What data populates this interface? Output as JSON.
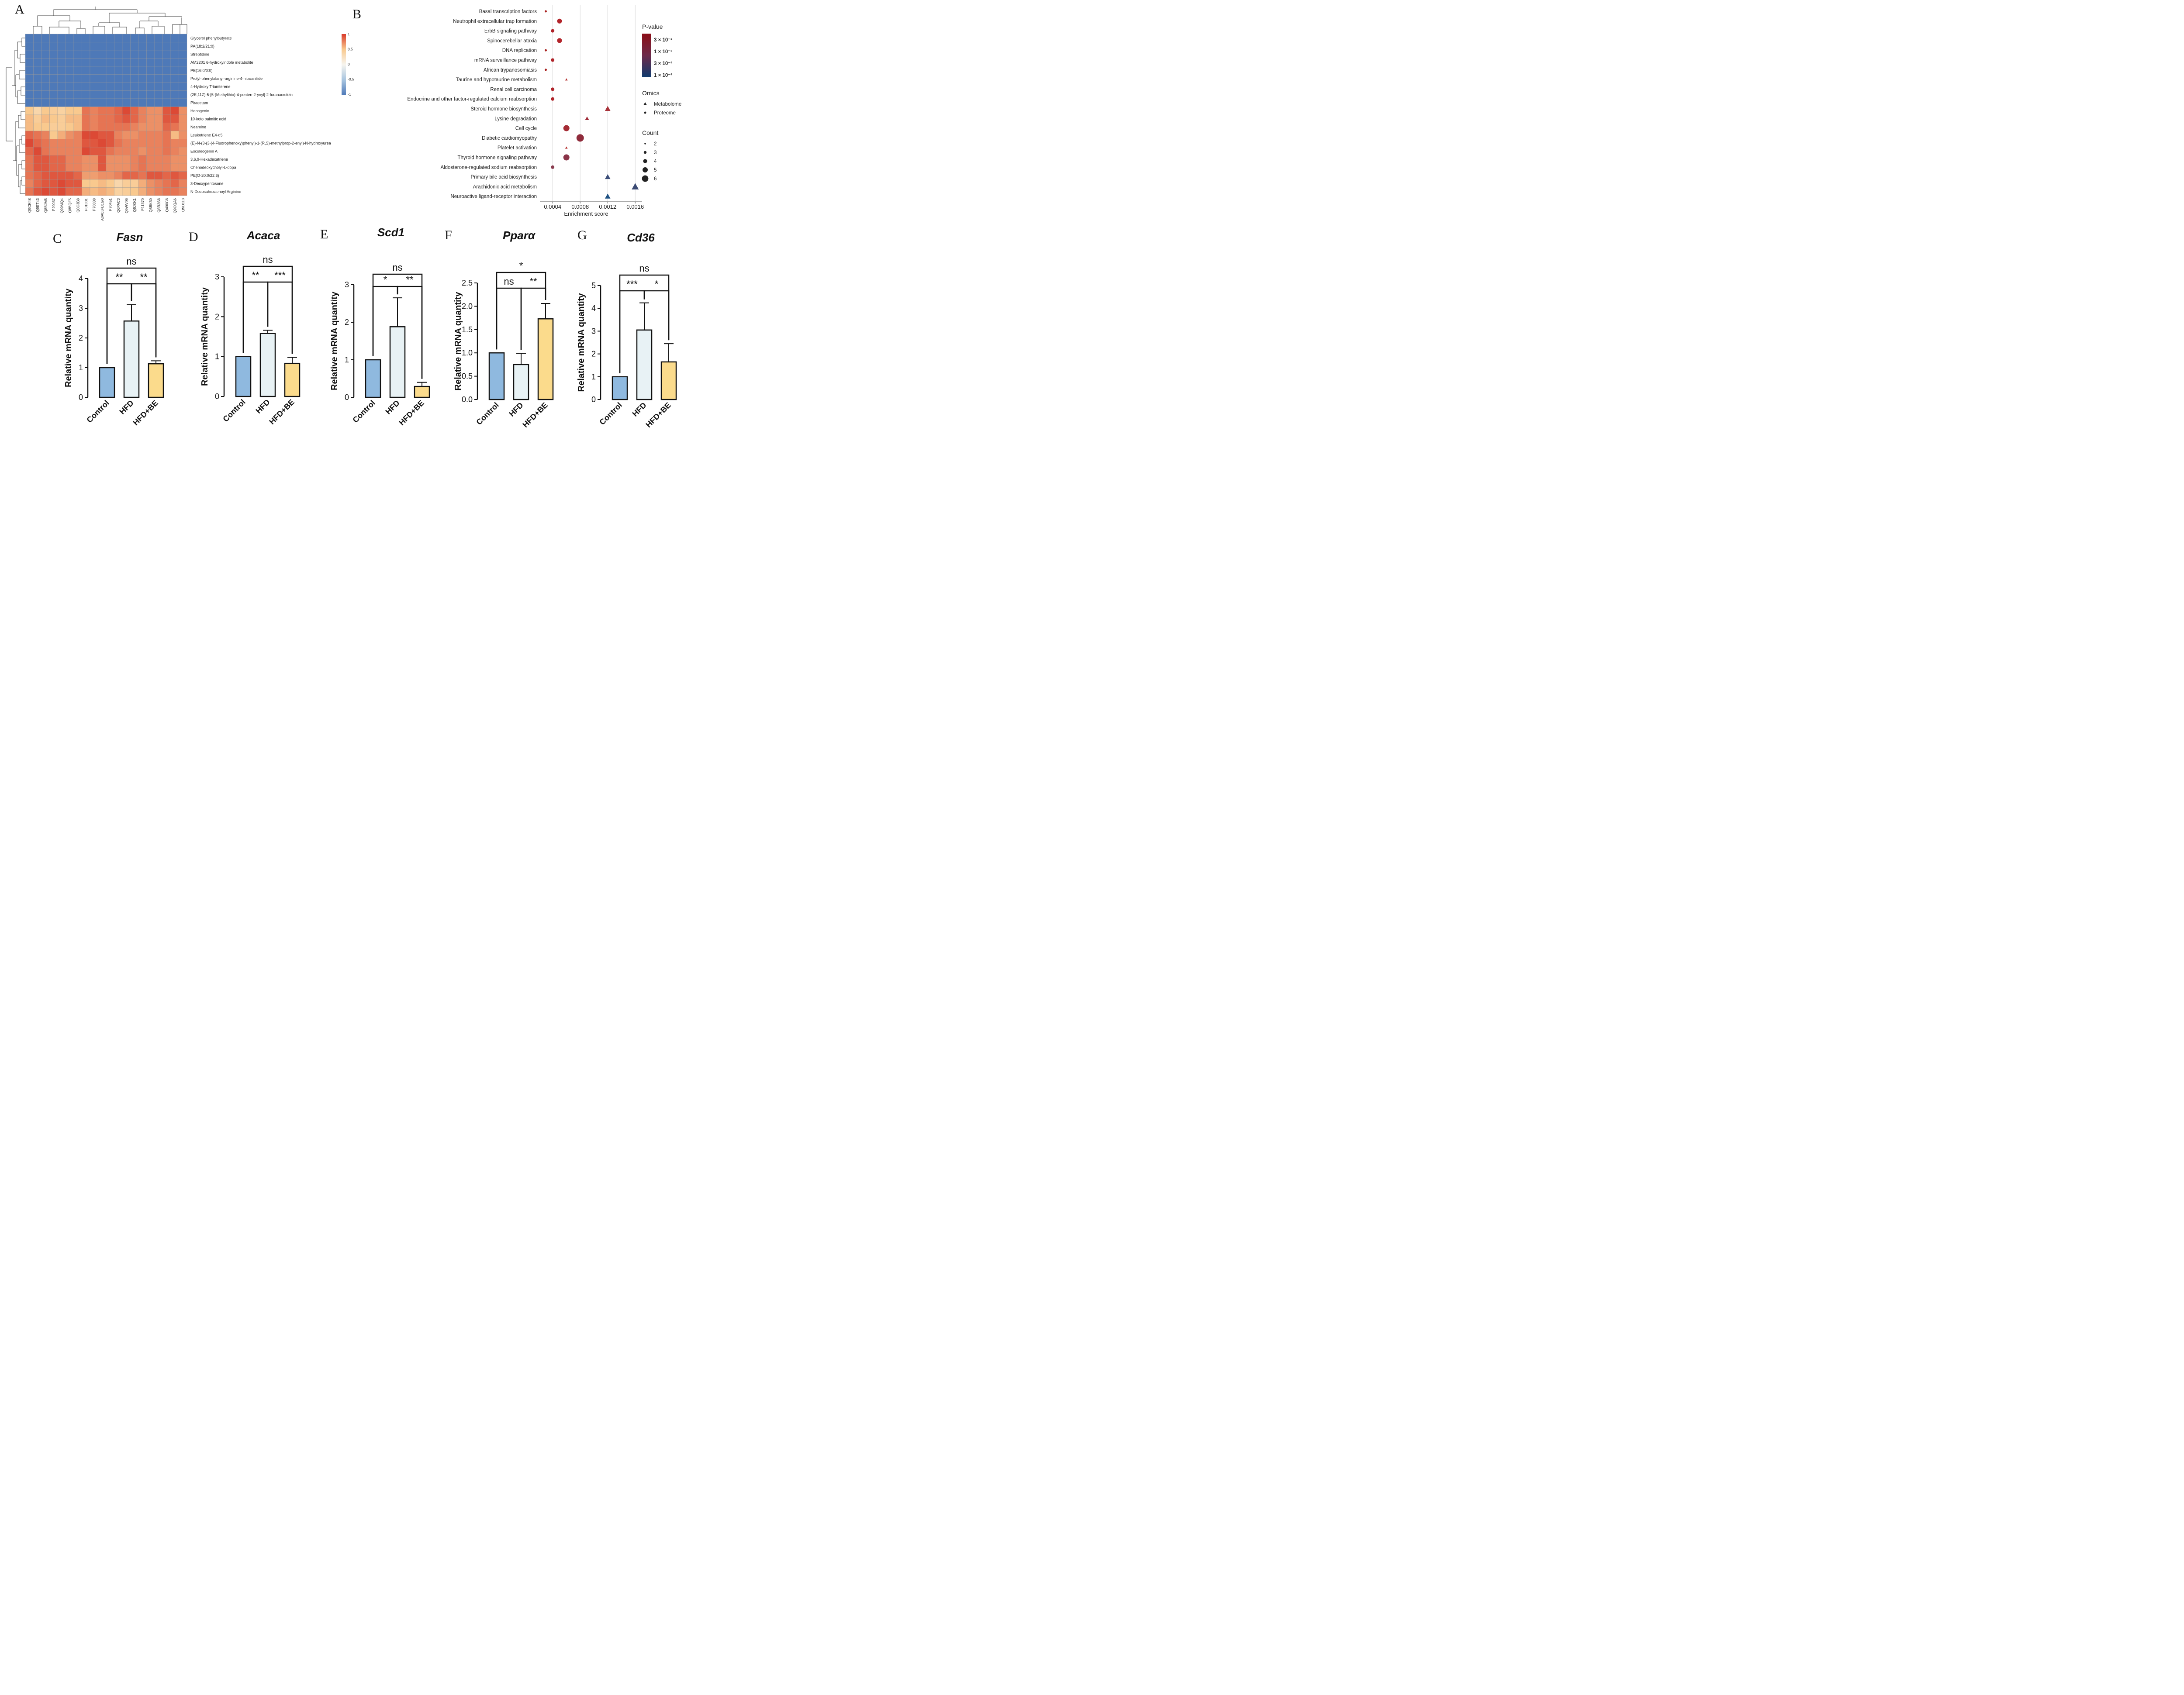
{
  "panel_labels": {
    "a": "A",
    "b": "B",
    "c": "C",
    "d": "D",
    "e": "E",
    "f": "F",
    "g": "G"
  },
  "chart_data": [
    {
      "type": "heatmap",
      "rows": [
        "Glycerol phenylbutyrate",
        "PA(18:2/21:0)",
        "Streptidine",
        "AM2201 6-hydroxyindole metabolite",
        "PE(16:0/0:0)",
        "Prolyl-phenylalanyl-arginine-4-nitroanilide",
        "4-Hydroxy Triamterene",
        "(2E,11Z)-5-[5-(Methylthio)-4-penten-2-ynyl]-2-furanacrolein",
        "Piracetam",
        "Hecogenin",
        "10-keto palmitic acid",
        "Neamine",
        "Leukotriene E4-d5",
        "(E)-N-(3-(3-(4-Fluorophenoxy)phenyl)-1-(R,S)-methylprop-2-enyl)-N-hydroxyurea",
        "Esculeogenin A",
        "3,6,9-Hexadecatriene",
        "Chenodeoxycholyl-L-dopa",
        "PE(O-20:0/22:6)",
        "3-Deoxypentosone",
        "N-Docosahexaenoyl Arginine"
      ],
      "columns": [
        "Q9CR48",
        "Q9ET43",
        "Q8BJM5",
        "P29037",
        "Q99MQ4",
        "Q8BQZ5",
        "Q8C3B8",
        "P01831",
        "P70388",
        "A0A0B4J1G0",
        "P70451",
        "Q6PAC3",
        "Q9WV96",
        "Q9JKK1",
        "P11370",
        "Q8BK30",
        "Q8R2S8",
        "Q400C8",
        "Q9CQA6",
        "Q9D113"
      ],
      "values": [
        [
          -1,
          -1,
          -1,
          -1,
          -1,
          -1,
          -1,
          -1,
          -1,
          -1,
          -1,
          -1,
          -1,
          -1,
          -1,
          -1,
          -1,
          -1,
          -1,
          -1
        ],
        [
          -1,
          -1,
          -1,
          -1,
          -1,
          -1,
          -1,
          -1,
          -1,
          -1,
          -1,
          -1,
          -1,
          -1,
          -1,
          -1,
          -1,
          -1,
          -1,
          -1
        ],
        [
          -1,
          -1,
          -1,
          -1,
          -1,
          -1,
          -1,
          -1,
          -1,
          -1,
          -1,
          -1,
          -1,
          -1,
          -1,
          -1,
          -1,
          -1,
          -1,
          -1
        ],
        [
          -1,
          -1,
          -1,
          -1,
          -1,
          -1,
          -1,
          -1,
          -1,
          -1,
          -1,
          -1,
          -1,
          -1,
          -1,
          -1,
          -1,
          -1,
          -1,
          -1
        ],
        [
          -1,
          -1,
          -1,
          -1,
          -1,
          -1,
          -1,
          -1,
          -1,
          -1,
          -1,
          -1,
          -1,
          -1,
          -1,
          -1,
          -1,
          -1,
          -1,
          -1
        ],
        [
          -1,
          -1,
          -1,
          -1,
          -1,
          -1,
          -1,
          -1,
          -1,
          -1,
          -1,
          -1,
          -1,
          -1,
          -1,
          -1,
          -1,
          -1,
          -1,
          -1
        ],
        [
          -1,
          -1,
          -1,
          -1,
          -1,
          -1,
          -1,
          -1,
          -1,
          -1,
          -1,
          -1,
          -1,
          -1,
          -1,
          -1,
          -1,
          -1,
          -1,
          -1
        ],
        [
          -1,
          -1,
          -1,
          -1,
          -1,
          -1,
          -1,
          -1,
          -1,
          -1,
          -1,
          -1,
          -1,
          -1,
          -1,
          -1,
          -1,
          -1,
          -1,
          -1
        ],
        [
          -1,
          -1,
          -1,
          -1,
          -1,
          -1,
          -1,
          -1,
          -1,
          -1,
          -1,
          -1,
          -1,
          -1,
          -1,
          -1,
          -1,
          -1,
          -1,
          -1
        ],
        [
          0.5,
          0.35,
          0.5,
          0.45,
          0.4,
          0.5,
          0.5,
          0.8,
          0.75,
          0.8,
          0.8,
          0.85,
          0.95,
          0.85,
          0.75,
          0.7,
          0.7,
          0.9,
          0.95,
          0.7
        ],
        [
          0.55,
          0.45,
          0.55,
          0.5,
          0.45,
          0.55,
          0.55,
          0.8,
          0.75,
          0.8,
          0.8,
          0.85,
          0.9,
          0.85,
          0.75,
          0.7,
          0.7,
          0.9,
          0.9,
          0.7
        ],
        [
          0.55,
          0.5,
          0.5,
          0.45,
          0.45,
          0.5,
          0.55,
          0.8,
          0.75,
          0.8,
          0.8,
          0.8,
          0.8,
          0.75,
          0.7,
          0.7,
          0.7,
          0.85,
          0.8,
          0.7
        ],
        [
          0.85,
          0.8,
          0.75,
          0.5,
          0.6,
          0.7,
          0.75,
          0.95,
          0.95,
          0.9,
          0.9,
          0.75,
          0.7,
          0.7,
          0.75,
          0.75,
          0.75,
          0.8,
          0.55,
          0.7
        ],
        [
          0.95,
          0.85,
          0.8,
          0.75,
          0.75,
          0.75,
          0.75,
          0.9,
          0.9,
          0.95,
          0.9,
          0.8,
          0.75,
          0.75,
          0.75,
          0.75,
          0.75,
          0.8,
          0.75,
          0.75
        ],
        [
          0.85,
          0.95,
          0.8,
          0.75,
          0.75,
          0.75,
          0.75,
          0.95,
          0.9,
          0.9,
          0.8,
          0.75,
          0.75,
          0.75,
          0.7,
          0.75,
          0.75,
          0.8,
          0.75,
          0.7
        ],
        [
          0.8,
          0.9,
          0.9,
          0.85,
          0.85,
          0.75,
          0.75,
          0.7,
          0.7,
          0.9,
          0.7,
          0.7,
          0.7,
          0.75,
          0.8,
          0.75,
          0.75,
          0.75,
          0.7,
          0.7
        ],
        [
          0.8,
          0.9,
          0.9,
          0.85,
          0.85,
          0.75,
          0.75,
          0.7,
          0.7,
          0.9,
          0.7,
          0.7,
          0.7,
          0.75,
          0.8,
          0.75,
          0.75,
          0.75,
          0.7,
          0.7
        ],
        [
          0.8,
          0.85,
          0.9,
          0.9,
          0.9,
          0.9,
          0.85,
          0.65,
          0.65,
          0.7,
          0.7,
          0.75,
          0.85,
          0.85,
          0.8,
          0.9,
          0.9,
          0.85,
          0.9,
          0.85
        ],
        [
          0.75,
          0.85,
          0.9,
          0.9,
          0.95,
          0.9,
          0.9,
          0.5,
          0.5,
          0.55,
          0.5,
          0.35,
          0.45,
          0.45,
          0.6,
          0.7,
          0.75,
          0.8,
          0.85,
          0.75
        ],
        [
          0.8,
          0.9,
          0.95,
          0.9,
          0.95,
          0.85,
          0.85,
          0.6,
          0.55,
          0.6,
          0.55,
          0.4,
          0.45,
          0.5,
          0.6,
          0.7,
          0.75,
          0.8,
          0.8,
          0.75
        ]
      ],
      "colorbar": {
        "ticks": [
          "1",
          "0.5",
          "0",
          "-0.5",
          "-1"
        ],
        "colors": {
          "low": "#4e79b8",
          "mid": "#f7f5ef",
          "high": "#d93b2b"
        }
      }
    },
    {
      "type": "scatter",
      "xlabel": "Enrichment score",
      "x_ticks": [
        "0.0004",
        "0.0008",
        "0.0012",
        "0.0016"
      ],
      "xlim": [
        0.00024,
        0.0017
      ],
      "pathways": [
        {
          "name": "Basal transcription factors",
          "x": 0.0003,
          "count": 1,
          "omics": "Proteome",
          "color": "#a8201e"
        },
        {
          "name": "Neutrophil extracellular trap formation",
          "x": 0.0005,
          "count": 3,
          "omics": "Proteome",
          "color": "#b3252b"
        },
        {
          "name": "ErbB signaling pathway",
          "x": 0.0004,
          "count": 2,
          "omics": "Proteome",
          "color": "#b0242a"
        },
        {
          "name": "Spinocerebellar ataxia",
          "x": 0.0005,
          "count": 3,
          "omics": "Proteome",
          "color": "#b3252b"
        },
        {
          "name": "DNA replication",
          "x": 0.0003,
          "count": 1,
          "omics": "Proteome",
          "color": "#a8201e"
        },
        {
          "name": "mRNA surveillance pathway",
          "x": 0.0004,
          "count": 2,
          "omics": "Proteome",
          "color": "#b0242a"
        },
        {
          "name": "African trypanosomiasis",
          "x": 0.0003,
          "count": 1,
          "omics": "Proteome",
          "color": "#a8201e"
        },
        {
          "name": "Taurine and hypotaurine metabolism",
          "x": 0.0006,
          "count": 1,
          "omics": "Metabolome",
          "color": "#b5302f"
        },
        {
          "name": "Renal cell carcinoma",
          "x": 0.0004,
          "count": 2,
          "omics": "Proteome",
          "color": "#b0242a"
        },
        {
          "name": "Endocrine and other factor-regulated calcium reabsorption",
          "x": 0.0004,
          "count": 2,
          "omics": "Proteome",
          "color": "#b0242a"
        },
        {
          "name": "Steroid hormone biosynthesis",
          "x": 0.0012,
          "count": 3,
          "omics": "Metabolome",
          "color": "#a8323a"
        },
        {
          "name": "Lysine degradation",
          "x": 0.0009,
          "count": 2,
          "omics": "Metabolome",
          "color": "#a02c38"
        },
        {
          "name": "Cell cycle",
          "x": 0.0006,
          "count": 4,
          "omics": "Proteome",
          "color": "#a52c35"
        },
        {
          "name": "Diabetic cardiomyopathy",
          "x": 0.0008,
          "count": 5,
          "omics": "Proteome",
          "color": "#8f2b3b"
        },
        {
          "name": "Platelet activation",
          "x": 0.0006,
          "count": 1,
          "omics": "Metabolome",
          "color": "#b5302f"
        },
        {
          "name": "Thyroid hormone signaling pathway",
          "x": 0.0006,
          "count": 4,
          "omics": "Proteome",
          "color": "#8a3448"
        },
        {
          "name": "Aldosterone-regulated sodium reabsorption",
          "x": 0.0004,
          "count": 2,
          "omics": "Proteome",
          "color": "#8a3d50"
        },
        {
          "name": "Primary bile acid biosynthesis",
          "x": 0.0012,
          "count": 3,
          "omics": "Metabolome",
          "color": "#3d4f7a"
        },
        {
          "name": "Arachidonic acid metabolism",
          "x": 0.0016,
          "count": 4,
          "omics": "Metabolome",
          "color": "#3b4b74"
        },
        {
          "name": "Neuroactive ligand-receptor interaction",
          "x": 0.0012,
          "count": 3,
          "omics": "Metabolome",
          "color": "#1f5283"
        }
      ],
      "legend": {
        "pvalue_title": "P-value",
        "pvalue_labels": [
          "3 × 10⁻²",
          "1 × 10⁻²",
          "3 × 10⁻³",
          "1 × 10⁻³"
        ],
        "omics_title": "Omics",
        "omics_labels": [
          "Metabolome",
          "Proteome"
        ],
        "count_title": "Count",
        "count_labels": [
          "2",
          "3",
          "4",
          "5",
          "6"
        ],
        "pvalue_colors": {
          "high": "#8b0d16",
          "mid": "#6d2a4a",
          "low": "#0f3b6e"
        }
      }
    },
    {
      "type": "bar",
      "title": "Fasn",
      "ylabel": "Relative mRNA quantity",
      "categories": [
        "Control",
        "HFD",
        "HFD+BE"
      ],
      "values": [
        1.0,
        2.57,
        1.13
      ],
      "errors": [
        0,
        0.55,
        0.1
      ],
      "ylim": [
        0,
        4
      ],
      "yticks": [
        "0",
        "1",
        "2",
        "3",
        "4"
      ],
      "significance": [
        {
          "label": "**",
          "from": 0,
          "to": 1
        },
        {
          "label": "**",
          "from": 1,
          "to": 2
        },
        {
          "label": "ns",
          "from": 0,
          "to": 2
        }
      ]
    },
    {
      "type": "bar",
      "title": "Acaca",
      "ylabel": "Relative mRNA quantity",
      "categories": [
        "Control",
        "HFD",
        "HFD+BE"
      ],
      "values": [
        1.0,
        1.58,
        0.83
      ],
      "errors": [
        0,
        0.08,
        0.15
      ],
      "ylim": [
        0,
        3
      ],
      "yticks": [
        "0",
        "1",
        "2",
        "3"
      ],
      "significance": [
        {
          "label": "**",
          "from": 0,
          "to": 1
        },
        {
          "label": "***",
          "from": 1,
          "to": 2
        },
        {
          "label": "ns",
          "from": 0,
          "to": 2
        }
      ]
    },
    {
      "type": "bar",
      "title": "Scd1",
      "ylabel": "Relative mRNA quantity",
      "categories": [
        "Control",
        "HFD",
        "HFD+BE"
      ],
      "values": [
        1.0,
        1.88,
        0.29
      ],
      "errors": [
        0,
        0.77,
        0.11
      ],
      "ylim": [
        0,
        3
      ],
      "yticks": [
        "0",
        "1",
        "2",
        "3"
      ],
      "significance": [
        {
          "label": "*",
          "from": 0,
          "to": 1
        },
        {
          "label": "**",
          "from": 1,
          "to": 2
        },
        {
          "label": "ns",
          "from": 0,
          "to": 2
        }
      ]
    },
    {
      "type": "bar",
      "title": "Pparα",
      "ylabel": "Relative mRNA quantity",
      "categories": [
        "Control",
        "HFD",
        "HFD+BE"
      ],
      "values": [
        1.0,
        0.75,
        1.73
      ],
      "errors": [
        0,
        0.24,
        0.33
      ],
      "ylim": [
        0,
        2.5
      ],
      "yticks": [
        "0.0",
        "0.5",
        "1.0",
        "1.5",
        "2.0",
        "2.5"
      ],
      "significance": [
        {
          "label": "ns",
          "from": 0,
          "to": 1
        },
        {
          "label": "**",
          "from": 1,
          "to": 2
        },
        {
          "label": "*",
          "from": 0,
          "to": 2
        }
      ]
    },
    {
      "type": "bar",
      "title": "Cd36",
      "ylabel": "Relative mRNA quantity",
      "categories": [
        "Control",
        "HFD",
        "HFD+BE"
      ],
      "values": [
        1.0,
        3.05,
        1.65
      ],
      "errors": [
        0,
        1.19,
        0.8
      ],
      "ylim": [
        0,
        5
      ],
      "yticks": [
        "0",
        "1",
        "2",
        "3",
        "4",
        "5"
      ],
      "significance": [
        {
          "label": "***",
          "from": 0,
          "to": 1
        },
        {
          "label": "*",
          "from": 1,
          "to": 2
        },
        {
          "label": "ns",
          "from": 0,
          "to": 2
        }
      ]
    }
  ],
  "bar_colors": [
    "#8fb9df",
    "#e8f2f5",
    "#fbdb8c"
  ]
}
